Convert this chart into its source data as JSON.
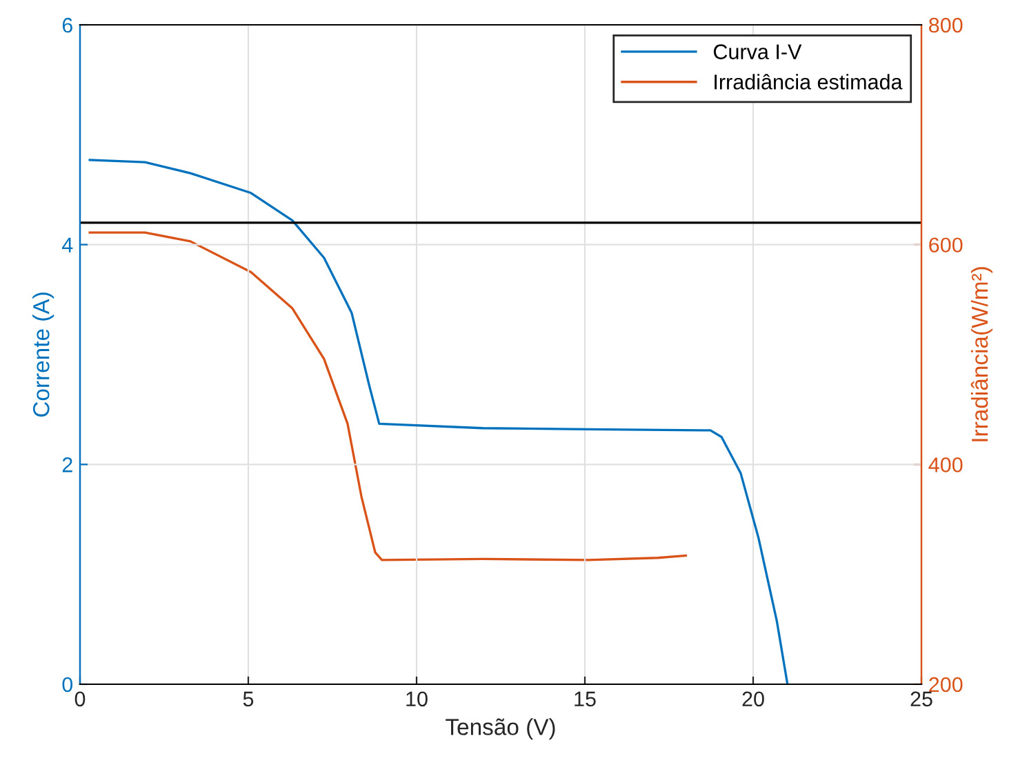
{
  "chart_data": {
    "type": "line",
    "xlabel": "Tensão (V)",
    "ylabel": "Corrente (A)",
    "y2label": "Irradiância(W/m²)",
    "xlim": [
      0,
      25
    ],
    "xticks": [
      0,
      5,
      10,
      15,
      20,
      25
    ],
    "ylim": [
      0,
      6
    ],
    "yticks": [
      0,
      2,
      4,
      6
    ],
    "y2lim": [
      200,
      800
    ],
    "y2ticks": [
      200,
      400,
      600,
      800
    ],
    "grid": true,
    "legend": "top right",
    "ref_lines": [
      {
        "axis": "y",
        "value": 4.2,
        "color": "#000000"
      }
    ],
    "series": [
      {
        "name": "Curva I-V",
        "color": "#0072bd",
        "x": [
          0.29,
          1.93,
          3.28,
          5.08,
          6.31,
          7.25,
          8.07,
          8.6,
          8.89,
          11.97,
          15.1,
          18.73,
          19.06,
          19.63,
          20.16,
          20.7,
          21.02
        ],
        "values": [
          4.77,
          4.75,
          4.65,
          4.47,
          4.22,
          3.88,
          3.38,
          2.71,
          2.37,
          2.33,
          2.32,
          2.31,
          2.25,
          1.92,
          1.33,
          0.58,
          0
        ]
      },
      {
        "name": "Irradiância estimada",
        "color": "#d95319",
        "axis": "y2",
        "x": [
          0.29,
          1.93,
          3.28,
          5.08,
          6.31,
          7.25,
          7.95,
          8.36,
          8.77,
          8.97,
          11.97,
          15.1,
          17.17,
          18.0
        ],
        "values": [
          611,
          611,
          603,
          575,
          542,
          496,
          437,
          371,
          320,
          313,
          314,
          313,
          315,
          317
        ]
      }
    ]
  }
}
